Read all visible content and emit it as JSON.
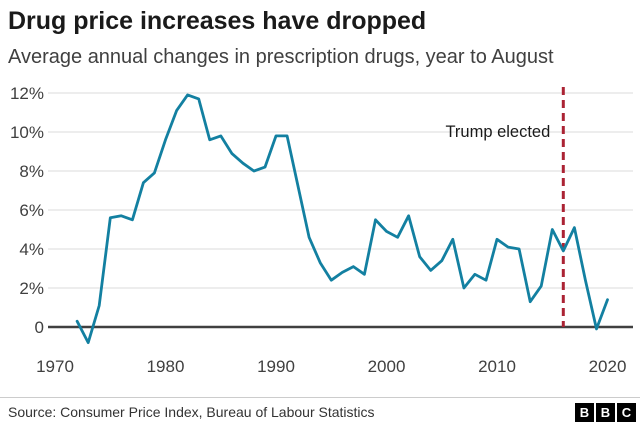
{
  "header": {
    "title": "Drug price increases have dropped",
    "subtitle": "Average annual changes in prescription drugs, year to August"
  },
  "chart_data": {
    "type": "line",
    "title": "Drug price increases have dropped",
    "subtitle": "Average annual changes in prescription drugs, year to August",
    "x": [
      1972,
      1973,
      1974,
      1975,
      1976,
      1977,
      1978,
      1979,
      1980,
      1981,
      1982,
      1983,
      1984,
      1985,
      1986,
      1987,
      1988,
      1989,
      1990,
      1991,
      1992,
      1993,
      1994,
      1995,
      1996,
      1997,
      1998,
      1999,
      2000,
      2001,
      2002,
      2003,
      2004,
      2005,
      2006,
      2007,
      2008,
      2009,
      2010,
      2011,
      2012,
      2013,
      2014,
      2015,
      2016,
      2017,
      2018,
      2019,
      2020
    ],
    "values": [
      0.3,
      -0.8,
      1.1,
      5.6,
      5.7,
      5.5,
      7.4,
      7.9,
      9.6,
      11.1,
      11.9,
      11.7,
      9.6,
      9.8,
      8.9,
      8.4,
      8.0,
      8.2,
      9.8,
      9.8,
      7.2,
      4.6,
      3.3,
      2.4,
      2.8,
      3.1,
      2.7,
      5.5,
      4.9,
      4.6,
      5.7,
      3.6,
      2.9,
      3.4,
      4.5,
      2.0,
      2.7,
      2.4,
      4.5,
      4.1,
      4.0,
      1.3,
      2.1,
      5.0,
      3.9,
      5.1,
      2.4,
      -0.1,
      1.4
    ],
    "xlabel": "",
    "ylabel": "",
    "x_ticks": [
      1970,
      1980,
      1990,
      2000,
      2010,
      2020
    ],
    "y_ticks": [
      0,
      2,
      4,
      6,
      8,
      10,
      12
    ],
    "y_tick_suffix": "%",
    "xlim": [
      1970,
      2022
    ],
    "ylim": [
      -1.2,
      12.3
    ],
    "grid": true,
    "legend": false,
    "annotations": [
      {
        "text": "Trump elected",
        "year": 2016,
        "type": "vertical-dashed-line"
      }
    ],
    "colors": {
      "line": "#1380a1",
      "event_line": "#ab2334",
      "zero_axis": "#404040",
      "grid": "#e2e2e2",
      "tick_label": "#404040",
      "annotation_text": "#1a1a1a"
    }
  },
  "footer": {
    "source": "Source: Consumer Price Index, Bureau of Labour Statistics",
    "logo_letters": [
      "B",
      "B",
      "C"
    ]
  }
}
